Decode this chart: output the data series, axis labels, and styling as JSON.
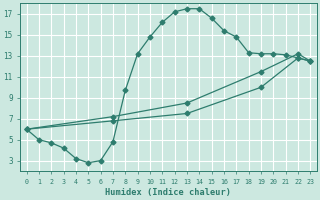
{
  "xlabel": "Humidex (Indice chaleur)",
  "bg_color": "#cce8e0",
  "line_color": "#2e7d6e",
  "grid_color": "#ffffff",
  "xlim": [
    -0.5,
    23.5
  ],
  "ylim": [
    2.0,
    18.0
  ],
  "yticks": [
    3,
    5,
    7,
    9,
    11,
    13,
    15,
    17
  ],
  "xticks": [
    0,
    1,
    2,
    3,
    4,
    5,
    6,
    7,
    8,
    9,
    10,
    11,
    12,
    13,
    14,
    15,
    16,
    17,
    18,
    19,
    20,
    21,
    22,
    23
  ],
  "curve1_x": [
    0,
    1,
    2,
    3,
    4,
    5,
    6,
    7,
    8,
    9,
    10,
    11,
    12,
    13,
    14,
    15,
    16,
    17,
    18,
    19,
    20,
    21,
    22,
    23
  ],
  "curve1_y": [
    6.0,
    5.0,
    4.7,
    4.2,
    3.2,
    2.8,
    3.0,
    4.8,
    9.7,
    13.2,
    14.8,
    16.2,
    17.2,
    17.5,
    17.5,
    16.6,
    15.4,
    14.8,
    13.3,
    13.2,
    13.2,
    13.1,
    12.8,
    12.5
  ],
  "curve2_x": [
    0,
    7,
    13,
    19,
    22,
    23
  ],
  "curve2_y": [
    6.0,
    7.2,
    8.5,
    11.5,
    13.2,
    12.5
  ],
  "curve3_x": [
    0,
    7,
    13,
    19,
    22,
    23
  ],
  "curve3_y": [
    6.0,
    6.8,
    7.5,
    10.0,
    12.8,
    12.5
  ]
}
